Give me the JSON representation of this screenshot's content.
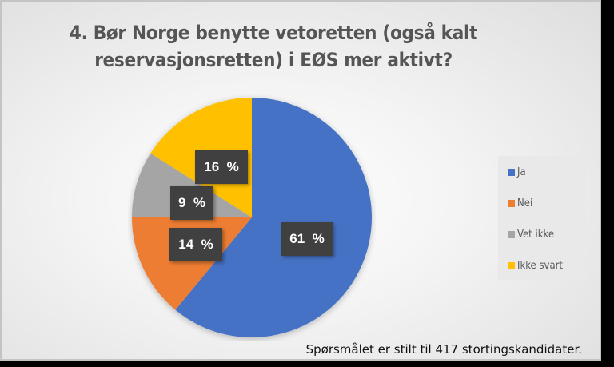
{
  "chart_data": {
    "type": "pie",
    "title": "4. Bør Norge benytte vetoretten (også kalt reservasjonsretten) i EØS mer aktivt?",
    "categories": [
      "Ja",
      "Nei",
      "Vet ikke",
      "Ikke svart"
    ],
    "values": [
      61,
      14,
      9,
      16
    ],
    "unit": "%",
    "colors": [
      "#4472C4",
      "#ED7D31",
      "#A5A5A5",
      "#FFC000"
    ],
    "data_labels": [
      "61 %",
      "14 %",
      "9 %",
      "16 %"
    ],
    "legend_position": "right",
    "start_angle": "12 o'clock, clockwise",
    "note": "Spørsmålet er stilt til 417 stortingskandidater."
  },
  "title": {
    "line1": "4. Bør Norge benytte vetoretten (også kalt",
    "line2": "reservasjonsretten) i EØS mer aktivt?"
  },
  "labels": {
    "ja": "61  %",
    "nei": "14  %",
    "vet_ikke": "9  %",
    "ikke_svart": "16  %"
  },
  "legend": {
    "items": [
      {
        "label": "Ja",
        "color": "#4472C4"
      },
      {
        "label": "Nei",
        "color": "#ED7D31"
      },
      {
        "label": "Vet ikke",
        "color": "#A5A5A5"
      },
      {
        "label": "Ikke svart",
        "color": "#FFC000"
      }
    ]
  },
  "footnote": "Spørsmålet er stilt til 417 stortingskandidater."
}
